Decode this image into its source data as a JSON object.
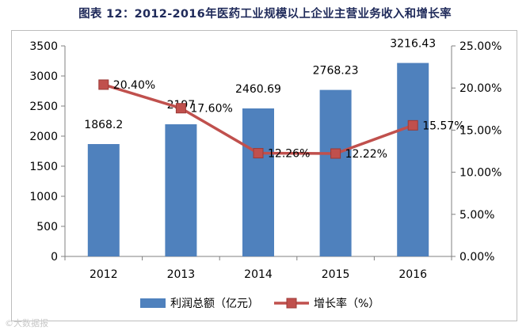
{
  "page": {
    "title": "图表 12：2012-2016年医药工业规模以上企业主营业务收入和增长率",
    "watermark": "©大数据报"
  },
  "chart_data": {
    "type": "bar",
    "categories": [
      "2012",
      "2013",
      "2014",
      "2015",
      "2016"
    ],
    "series": [
      {
        "name": "利润总额（亿元）",
        "type": "bar",
        "axis": "left",
        "values": [
          1868.2,
          2197,
          2460.69,
          2768.23,
          3216.43
        ],
        "labels": [
          "1868.2",
          "2197",
          "2460.69",
          "2768.23",
          "3216.43"
        ],
        "color": "#4f81bd"
      },
      {
        "name": "增长率（%）",
        "type": "line",
        "axis": "right",
        "values": [
          20.4,
          17.6,
          12.26,
          12.22,
          15.57
        ],
        "labels": [
          "20.40%",
          "17.60%",
          "12.26%",
          "12.22%",
          "15.57%"
        ],
        "color": "#c0504d"
      }
    ],
    "y_left": {
      "min": 0,
      "max": 3500,
      "step": 500,
      "ticks": [
        "0",
        "500",
        "1000",
        "1500",
        "2000",
        "2500",
        "3000",
        "3500"
      ]
    },
    "y_right": {
      "min": 0,
      "max": 25,
      "step": 5,
      "ticks": [
        "0.00%",
        "5.00%",
        "10.00%",
        "15.00%",
        "20.00%",
        "25.00%"
      ]
    },
    "grid": false,
    "legend_position": "bottom"
  }
}
